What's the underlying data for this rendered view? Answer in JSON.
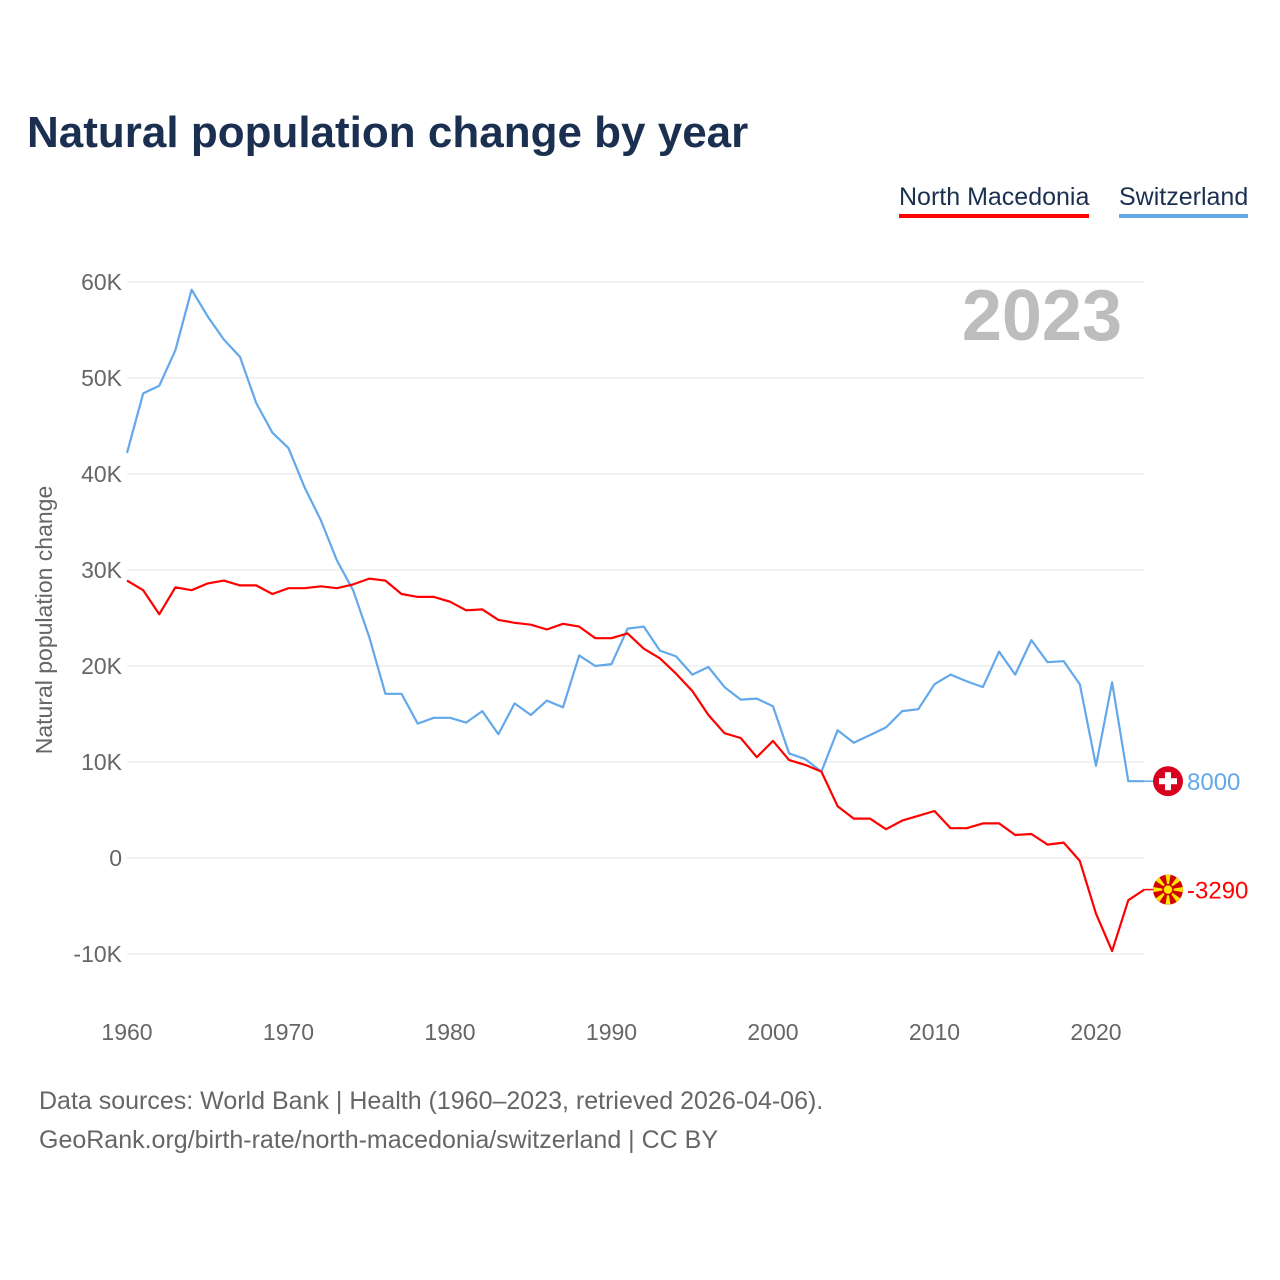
{
  "title": "Natural population change by year",
  "legend": [
    {
      "label": "North Macedonia",
      "color": "#ff0000"
    },
    {
      "label": "Switzerland",
      "color": "#62a8ea"
    }
  ],
  "footer": {
    "line1": "Data sources: World Bank | Health (1960–2023, retrieved 2026-04-06).",
    "line2": "GeoRank.org/birth-rate/north-macedonia/switzerland | CC BY"
  },
  "chart_data": {
    "type": "line",
    "title": "Natural population change by year",
    "ylabel": "Natural population change",
    "xlabel": "",
    "year_label": "2023",
    "xlim": [
      1960,
      2023
    ],
    "ylim": [
      -10000,
      60000
    ],
    "x_ticks": [
      1960,
      1970,
      1980,
      1990,
      2000,
      2010,
      2020
    ],
    "y_ticks": [
      {
        "value": -10000,
        "label": "-10K"
      },
      {
        "value": 0,
        "label": "0"
      },
      {
        "value": 10000,
        "label": "10K"
      },
      {
        "value": 20000,
        "label": "20K"
      },
      {
        "value": 30000,
        "label": "30K"
      },
      {
        "value": 40000,
        "label": "40K"
      },
      {
        "value": 50000,
        "label": "50K"
      },
      {
        "value": 60000,
        "label": "60K"
      }
    ],
    "grid": true,
    "legend_position": "top-right",
    "x_start": 1960,
    "series": [
      {
        "name": "North Macedonia",
        "color": "#ff0000",
        "end_label": "-3290",
        "flag": "north-macedonia",
        "values": [
          28900,
          27900,
          25400,
          28200,
          27900,
          28600,
          28900,
          28400,
          28400,
          27500,
          28100,
          28100,
          28300,
          28100,
          28500,
          29100,
          28900,
          27500,
          27200,
          27200,
          26700,
          25800,
          25900,
          24800,
          24500,
          24300,
          23800,
          24400,
          24100,
          22900,
          22900,
          23400,
          21800,
          20800,
          19200,
          17400,
          14900,
          13000,
          12500,
          10500,
          12200,
          10200,
          9700,
          9000,
          5400,
          4100,
          4100,
          3000,
          3900,
          4400,
          4900,
          3100,
          3100,
          3600,
          3600,
          2400,
          2500,
          1400,
          1600,
          -300,
          -5800,
          -9700,
          -4400,
          -3290
        ]
      },
      {
        "name": "Switzerland",
        "color": "#62a8ea",
        "end_label": "8000",
        "flag": "switzerland",
        "values": [
          42200,
          48400,
          49200,
          52900,
          59200,
          56400,
          54000,
          52200,
          47400,
          44300,
          42700,
          38600,
          35200,
          31000,
          27900,
          23000,
          17100,
          17100,
          14000,
          14600,
          14600,
          14100,
          15300,
          12900,
          16100,
          14900,
          16400,
          15700,
          21100,
          20000,
          20200,
          23900,
          24100,
          21600,
          21000,
          19100,
          19900,
          17800,
          16500,
          16600,
          15800,
          10900,
          10300,
          9000,
          13300,
          12000,
          12800,
          13600,
          15300,
          15500,
          18100,
          19100,
          18400,
          17800,
          21500,
          19100,
          22700,
          20400,
          20500,
          18100,
          9600,
          18300,
          8000,
          8000
        ]
      }
    ]
  }
}
